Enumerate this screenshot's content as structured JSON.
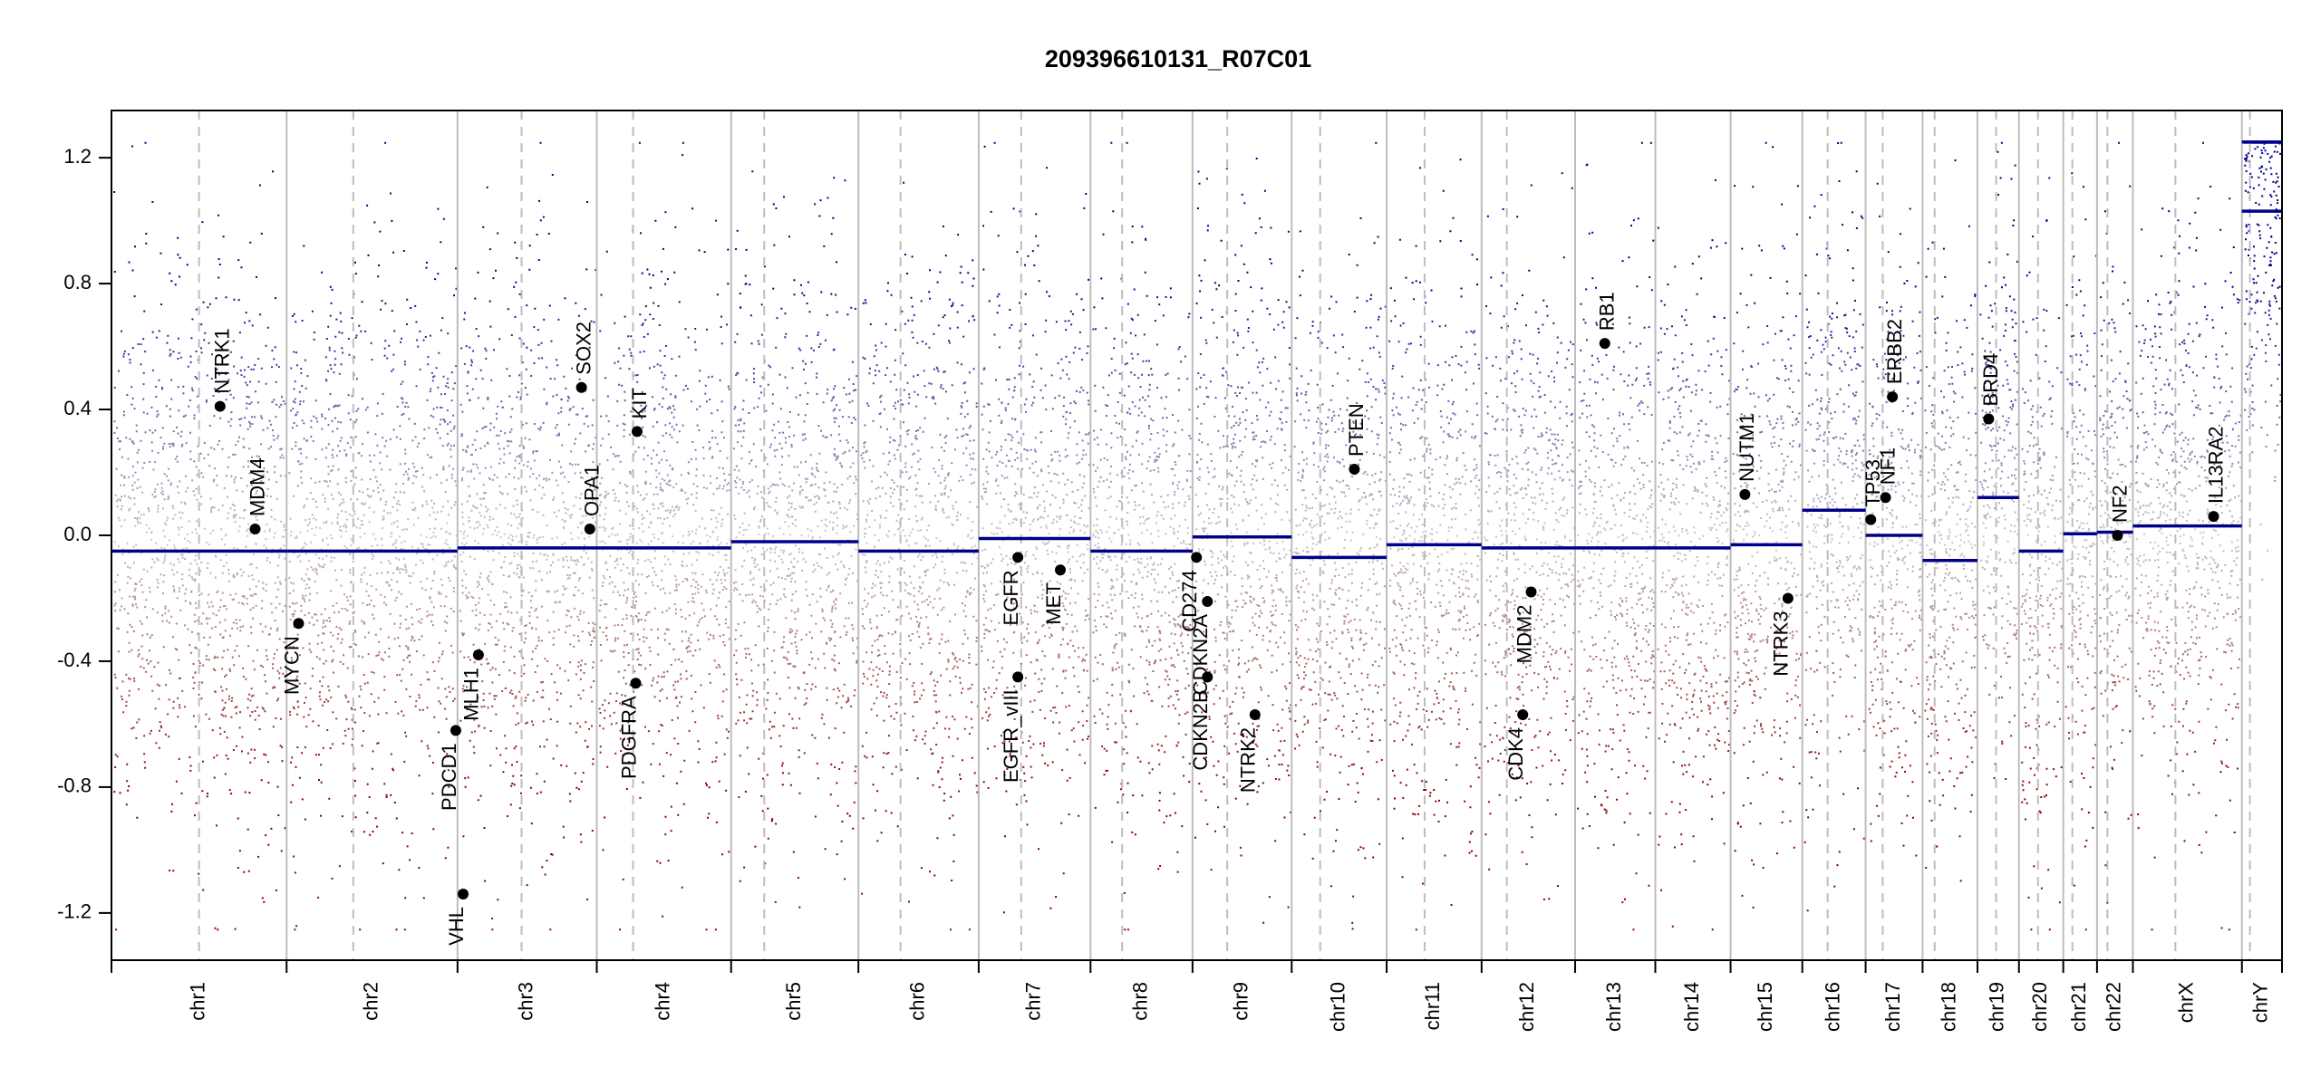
{
  "chart_data": {
    "type": "scatter",
    "title": "209396610131_R07C01",
    "xlabel": "",
    "ylabel": "",
    "ylim": [
      -1.35,
      1.35
    ],
    "yticks": [
      -1.2,
      -0.8,
      -0.4,
      0.0,
      0.4,
      0.8,
      1.2
    ],
    "ytick_labels": [
      "-1.2",
      "-0.8",
      "-0.4",
      "0.0",
      "0.4",
      "0.8",
      "1.2"
    ],
    "clip_value": 1.25,
    "grid": false,
    "colors": {
      "gain": "#00008B",
      "loss": "#8B0000",
      "neutral": "#C8C8C8",
      "segment": "#00008B",
      "chrom_boundary": "#BDBDBD",
      "centromere": "#BDBDBD"
    },
    "chromosomes": [
      {
        "name": "chr1",
        "length": 249,
        "centromere": 0.5,
        "segments": [
          {
            "start": 0,
            "end": 1,
            "value": -0.05
          }
        ]
      },
      {
        "name": "chr2",
        "length": 243,
        "centromere": 0.39,
        "segments": [
          {
            "start": 0,
            "end": 1,
            "value": -0.05
          }
        ]
      },
      {
        "name": "chr3",
        "length": 198,
        "centromere": 0.46,
        "segments": [
          {
            "start": 0,
            "end": 1,
            "value": -0.04
          }
        ]
      },
      {
        "name": "chr4",
        "length": 191,
        "centromere": 0.27,
        "segments": [
          {
            "start": 0,
            "end": 1,
            "value": -0.04
          }
        ]
      },
      {
        "name": "chr5",
        "length": 181,
        "centromere": 0.26,
        "segments": [
          {
            "start": 0,
            "end": 1,
            "value": -0.02
          }
        ]
      },
      {
        "name": "chr6",
        "length": 171,
        "centromere": 0.35,
        "segments": [
          {
            "start": 0,
            "end": 1,
            "value": -0.05
          }
        ]
      },
      {
        "name": "chr7",
        "length": 159,
        "centromere": 0.38,
        "segments": [
          {
            "start": 0,
            "end": 1,
            "value": -0.01
          }
        ]
      },
      {
        "name": "chr8",
        "length": 145,
        "centromere": 0.31,
        "segments": [
          {
            "start": 0,
            "end": 1,
            "value": -0.05
          }
        ]
      },
      {
        "name": "chr9",
        "length": 141,
        "centromere": 0.35,
        "segments": [
          {
            "start": 0,
            "end": 1,
            "value": -0.005
          }
        ]
      },
      {
        "name": "chr10",
        "length": 135,
        "centromere": 0.3,
        "segments": [
          {
            "start": 0,
            "end": 1,
            "value": -0.07
          }
        ]
      },
      {
        "name": "chr11",
        "length": 135,
        "centromere": 0.4,
        "segments": [
          {
            "start": 0,
            "end": 1,
            "value": -0.03
          }
        ]
      },
      {
        "name": "chr12",
        "length": 133,
        "centromere": 0.27,
        "segments": [
          {
            "start": 0,
            "end": 1,
            "value": -0.04
          }
        ]
      },
      {
        "name": "chr13",
        "length": 114,
        "centromere": 0.0,
        "segments": [
          {
            "start": 0,
            "end": 1,
            "value": -0.04
          }
        ]
      },
      {
        "name": "chr14",
        "length": 107,
        "centromere": 0.0,
        "segments": [
          {
            "start": 0,
            "end": 1,
            "value": -0.04
          }
        ]
      },
      {
        "name": "chr15",
        "length": 102,
        "centromere": 0.0,
        "segments": [
          {
            "start": 0,
            "end": 1,
            "value": -0.03
          }
        ]
      },
      {
        "name": "chr16",
        "length": 90,
        "centromere": 0.4,
        "segments": [
          {
            "start": 0,
            "end": 1,
            "value": 0.08
          }
        ]
      },
      {
        "name": "chr17",
        "length": 81,
        "centromere": 0.3,
        "segments": [
          {
            "start": 0,
            "end": 1,
            "value": 0.0
          }
        ]
      },
      {
        "name": "chr18",
        "length": 78,
        "centromere": 0.22,
        "segments": [
          {
            "start": 0,
            "end": 1,
            "value": -0.08
          }
        ]
      },
      {
        "name": "chr19",
        "length": 59,
        "centromere": 0.45,
        "segments": [
          {
            "start": 0,
            "end": 1,
            "value": 0.12
          }
        ]
      },
      {
        "name": "chr20",
        "length": 63,
        "centromere": 0.43,
        "segments": [
          {
            "start": 0,
            "end": 1,
            "value": -0.05
          }
        ]
      },
      {
        "name": "chr21",
        "length": 48,
        "centromere": 0.27,
        "segments": [
          {
            "start": 0,
            "end": 1,
            "value": 0.005
          }
        ]
      },
      {
        "name": "chr22",
        "length": 51,
        "centromere": 0.29,
        "segments": [
          {
            "start": 0,
            "end": 1,
            "value": 0.01
          }
        ]
      },
      {
        "name": "chrX",
        "length": 155,
        "centromere": 0.39,
        "segments": [
          {
            "start": 0,
            "end": 1,
            "value": 0.03
          }
        ]
      },
      {
        "name": "chrY",
        "length": 57,
        "centromere": 0.2,
        "segments": [
          {
            "start": 0,
            "end": 1,
            "value": 1.25
          },
          {
            "start": 0,
            "end": 1,
            "value": 1.03
          }
        ]
      }
    ],
    "genes": [
      {
        "name": "NTRK1",
        "chrom": "chr1",
        "pos": 0.62,
        "value": 0.41
      },
      {
        "name": "MDM4",
        "chrom": "chr1",
        "pos": 0.82,
        "value": 0.02
      },
      {
        "name": "MYCN",
        "chrom": "chr2",
        "pos": 0.07,
        "value": -0.28
      },
      {
        "name": "VHL",
        "chrom": "chr3",
        "pos": 0.04,
        "value": -1.14
      },
      {
        "name": "PDCD1",
        "chrom": "chr2",
        "pos": 0.99,
        "value": -0.62
      },
      {
        "name": "MLH1",
        "chrom": "chr3",
        "pos": 0.15,
        "value": -0.38
      },
      {
        "name": "SOX2",
        "chrom": "chr3",
        "pos": 0.89,
        "value": 0.47
      },
      {
        "name": "OPA1",
        "chrom": "chr3",
        "pos": 0.95,
        "value": 0.02
      },
      {
        "name": "KIT",
        "chrom": "chr4",
        "pos": 0.3,
        "value": 0.33
      },
      {
        "name": "PDGFRA",
        "chrom": "chr4",
        "pos": 0.29,
        "value": -0.47
      },
      {
        "name": "EGFR",
        "chrom": "chr7",
        "pos": 0.35,
        "value": -0.07
      },
      {
        "name": "EGFR_vIII",
        "chrom": "chr7",
        "pos": 0.35,
        "value": -0.45
      },
      {
        "name": "MET",
        "chrom": "chr7",
        "pos": 0.73,
        "value": -0.11
      },
      {
        "name": "CD274",
        "chrom": "chr9",
        "pos": 0.04,
        "value": -0.07
      },
      {
        "name": "CDKN2A",
        "chrom": "chr9",
        "pos": 0.15,
        "value": -0.21
      },
      {
        "name": "CDKN2B",
        "chrom": "chr9",
        "pos": 0.15,
        "value": -0.45
      },
      {
        "name": "NTRK2",
        "chrom": "chr9",
        "pos": 0.63,
        "value": -0.57
      },
      {
        "name": "PTEN",
        "chrom": "chr10",
        "pos": 0.66,
        "value": 0.21
      },
      {
        "name": "MDM2",
        "chrom": "chr12",
        "pos": 0.53,
        "value": -0.18
      },
      {
        "name": "CDK4",
        "chrom": "chr12",
        "pos": 0.44,
        "value": -0.57
      },
      {
        "name": "RB1",
        "chrom": "chr13",
        "pos": 0.37,
        "value": 0.61
      },
      {
        "name": "NUTM1",
        "chrom": "chr15",
        "pos": 0.2,
        "value": 0.13
      },
      {
        "name": "NTRK3",
        "chrom": "chr15",
        "pos": 0.8,
        "value": -0.2
      },
      {
        "name": "TP53",
        "chrom": "chr17",
        "pos": 0.09,
        "value": 0.05
      },
      {
        "name": "NF1",
        "chrom": "chr17",
        "pos": 0.35,
        "value": 0.12
      },
      {
        "name": "ERBB2",
        "chrom": "chr17",
        "pos": 0.47,
        "value": 0.44
      },
      {
        "name": "BRD4",
        "chrom": "chr19",
        "pos": 0.27,
        "value": 0.37
      },
      {
        "name": "NF2",
        "chrom": "chr22",
        "pos": 0.57,
        "value": 0.0
      },
      {
        "name": "IL13RA2",
        "chrom": "chrX",
        "pos": 0.74,
        "value": 0.06
      }
    ]
  }
}
